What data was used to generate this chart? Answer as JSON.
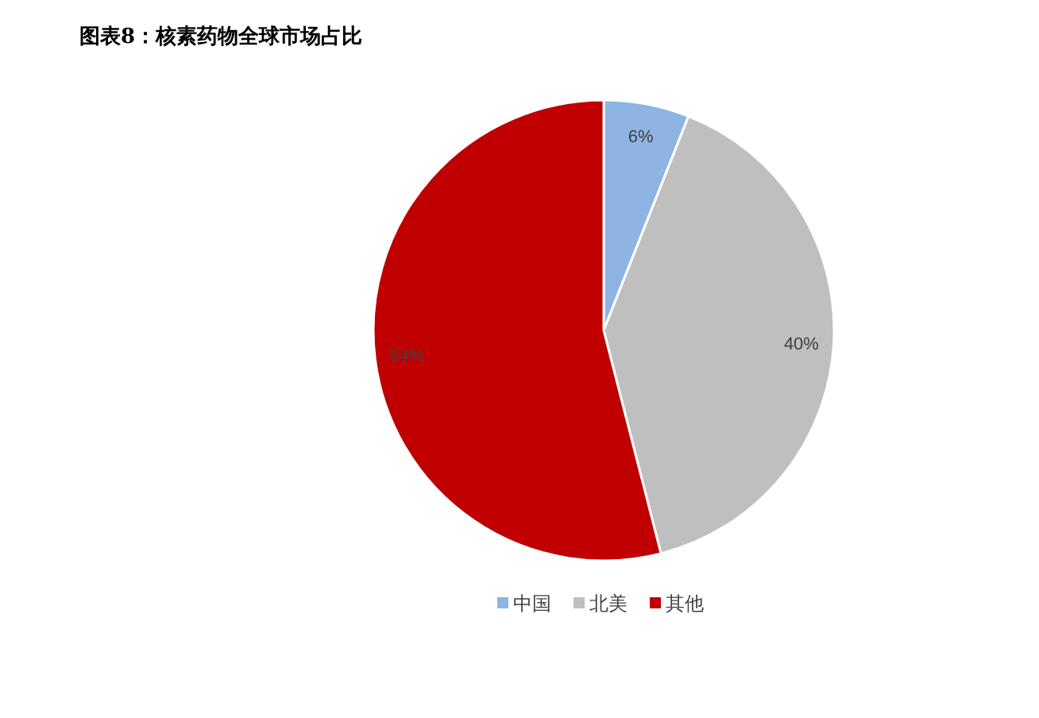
{
  "chart_data": {
    "type": "pie",
    "title": "图表8：核素药物全球市场占比",
    "categories": [
      "中国",
      "北美",
      "其他"
    ],
    "values": [
      6,
      40,
      54
    ],
    "colors": [
      "#8db4e2",
      "#bfbfbf",
      "#c00000"
    ],
    "value_labels": [
      "6%",
      "40%",
      "54%"
    ],
    "legend": "bottom"
  }
}
